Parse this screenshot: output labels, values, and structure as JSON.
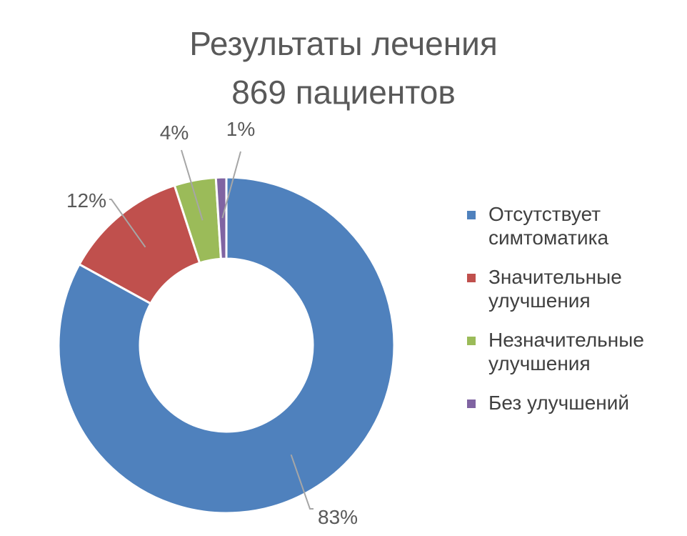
{
  "chart_data": {
    "type": "pie",
    "subtype": "doughnut",
    "title": [
      "Результаты лечения",
      "869 пациентов"
    ],
    "categories": [
      "Отсутствует симтоматика",
      "Значительные улучшения",
      "Незначительные улучшения",
      "Без улучшений"
    ],
    "values": [
      83,
      12,
      4,
      1
    ],
    "labels": [
      "83%",
      "12%",
      "4%",
      "1%"
    ],
    "colors": [
      "#4F81BD",
      "#C0504D",
      "#9BBB59",
      "#8064A2"
    ],
    "legend_position": "right"
  },
  "legend": {
    "items": [
      {
        "line1": "Отсутствует",
        "line2": "симтоматика"
      },
      {
        "line1": "Значительные",
        "line2": "улучшения"
      },
      {
        "line1": "Незначительные",
        "line2": "улучшения"
      },
      {
        "line1": "Без улучшений",
        "line2": ""
      }
    ]
  }
}
